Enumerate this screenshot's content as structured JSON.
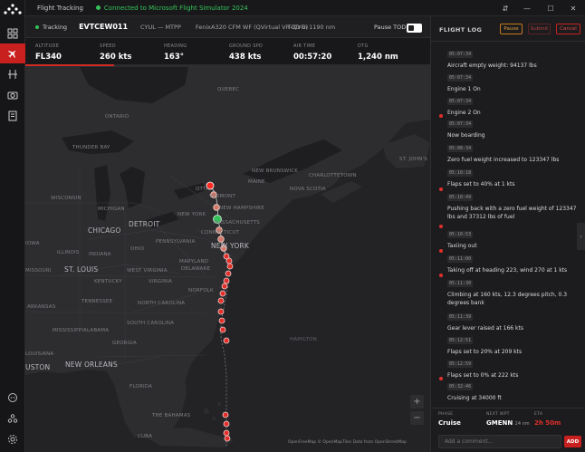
{
  "window": {
    "title": "Flight Tracking",
    "connection": "Connected to Microsoft Flight Simulator 2024",
    "controls": [
      "⇵",
      "—",
      "☐",
      "✕"
    ]
  },
  "nav": {
    "items": [
      "dashboard-icon",
      "flight-icon",
      "routes-icon",
      "camera-icon",
      "logbook-icon"
    ],
    "bottom": [
      "discord-icon",
      "community-icon",
      "settings-icon"
    ],
    "active_index": 1
  },
  "flight": {
    "status": "Tracking",
    "callsign": "EVTCEW011",
    "route": "CYUL — MTPP",
    "aircraft": "FenixA320 CFM WF (QVirtual VH-QVG)",
    "tod": "TOD in 1190 nm",
    "pause_tod_label": "Pause TOD",
    "pause_tod_on": false,
    "progress_fraction": 0.22
  },
  "stats": [
    {
      "label": "ALTITUDE",
      "value": "FL340"
    },
    {
      "label": "SPEED",
      "value": "260 kts"
    },
    {
      "label": "HEADING",
      "value": "163°"
    },
    {
      "label": "GROUND SPD",
      "value": "438 kts"
    },
    {
      "label": "AIR TIME",
      "value": "00:57:20"
    },
    {
      "label": "DTG",
      "value": "1,240 nm"
    }
  ],
  "map": {
    "labels": {
      "quebec": "QUEBEC",
      "ontario": "ONTARIO",
      "thunder_bay": "THUNDER BAY",
      "wisconsin": "WISCONSIN",
      "michigan": "MICHIGAN",
      "detroit": "DETROIT",
      "chicago": "CHICAGO",
      "iowa": "IOWA",
      "illinois": "ILLINOIS",
      "indiana": "INDIANA",
      "ohio": "OHIO",
      "pennsylvania": "PENNSYLVANIA",
      "st_louis": "ST. LOUIS",
      "missouri": "MISSOURI",
      "kentucky": "KENTUCKY",
      "west_virginia": "WEST VIRGINIA",
      "virginia": "VIRGINIA",
      "maryland": "MARYLAND",
      "delaware": "DELAWARE",
      "norfolk": "NORFOLK",
      "tennessee": "TENNESSEE",
      "north_carolina": "NORTH CAROLINA",
      "arkansas": "ARKANSAS",
      "south_carolina": "SOUTH CAROLINA",
      "mississippi": "MISSISSIPPI",
      "alabama": "ALABAMA",
      "georgia": "GEORGIA",
      "louisiana": "LOUISIANA",
      "houston": "USTON",
      "new_orleans": "NEW ORLEANS",
      "florida": "FLORIDA",
      "new_york_state": "NEW YORK",
      "vermont": "VERMONT",
      "new_hampshire": "NEW HAMPSHIRE",
      "massachusetts": "MASSACHUSETTS",
      "connecticut": "CONNECTICUT",
      "new_york_city": "NEW YORK",
      "maine": "MAINE",
      "new_brunswick": "NEW BRUNSWICK",
      "charlottetown": "CHARLOTTETOWN",
      "nova_scotia": "NOVA SCOTIA",
      "st_johns": "ST. JOHN'S",
      "hamilton": "HAMILTON",
      "the_bahamas": "THE BAHAMAS",
      "cuba": "CUBA",
      "otta": "OTTA"
    },
    "attribution": "OpenFreeMap © OpenMapTiles Data from OpenStreetMap",
    "zoom_in": "+",
    "zoom_out": "−"
  },
  "log": {
    "title": "FLIGHT LOG",
    "buttons": {
      "pause": "Pause",
      "submit": "Submit",
      "cancel": "Cancel"
    },
    "entries": [
      {
        "time": "05:07:34",
        "text": "Aircraft empty weight: 94137 lbs",
        "marked": false
      },
      {
        "time": "05:07:34",
        "text": "Engine 1 On",
        "marked": false
      },
      {
        "time": "05:07:34",
        "text": "Engine 2 On",
        "marked": false
      },
      {
        "time": "05:07:34",
        "text": "Now boarding",
        "marked": true
      },
      {
        "time": "05:08:34",
        "text": "Zero fuel weight increased to 123347 lbs",
        "marked": false
      },
      {
        "time": "05:10:18",
        "text": "Flaps set to 40% at 1 kts",
        "marked": false
      },
      {
        "time": "05:10:49",
        "text": "Pushing back with a zero fuel weight of 123347 lbs and 37312 lbs of fuel",
        "marked": true
      },
      {
        "time": "05:10:53",
        "text": "Taxiing out",
        "marked": true
      },
      {
        "time": "05:11:00",
        "text": "Taking off at heading 223, wind 270 at 1 kts",
        "marked": true
      },
      {
        "time": "05:11:30",
        "text": "Climbing at 160 kts, 12.3 degrees pitch, 0.3 degrees bank",
        "marked": true
      },
      {
        "time": "05:11:39",
        "text": "Gear lever raised at 166 kts",
        "marked": false
      },
      {
        "time": "05:12:51",
        "text": "Flaps set to 20% at 209 kts",
        "marked": false
      },
      {
        "time": "05:12:59",
        "text": "Flaps set to 0% at 222 kts",
        "marked": false
      },
      {
        "time": "05:32:46",
        "text": "Cruising at 34000 ft",
        "marked": true
      }
    ]
  },
  "phase": {
    "phase_label": "PHASE",
    "phase_value": "Cruise",
    "wpt_label": "NEXT WPT",
    "wpt_value": "GMENN",
    "wpt_dist": "24 nm",
    "eta_label": "ETA",
    "eta_value": "2h 50m"
  },
  "comment": {
    "placeholder": "Add a comment...",
    "add_label": "ADD"
  },
  "colors": {
    "accent": "#c8201f",
    "ok": "#35c259",
    "route_point": "#e0302b",
    "current": "#35c259"
  }
}
